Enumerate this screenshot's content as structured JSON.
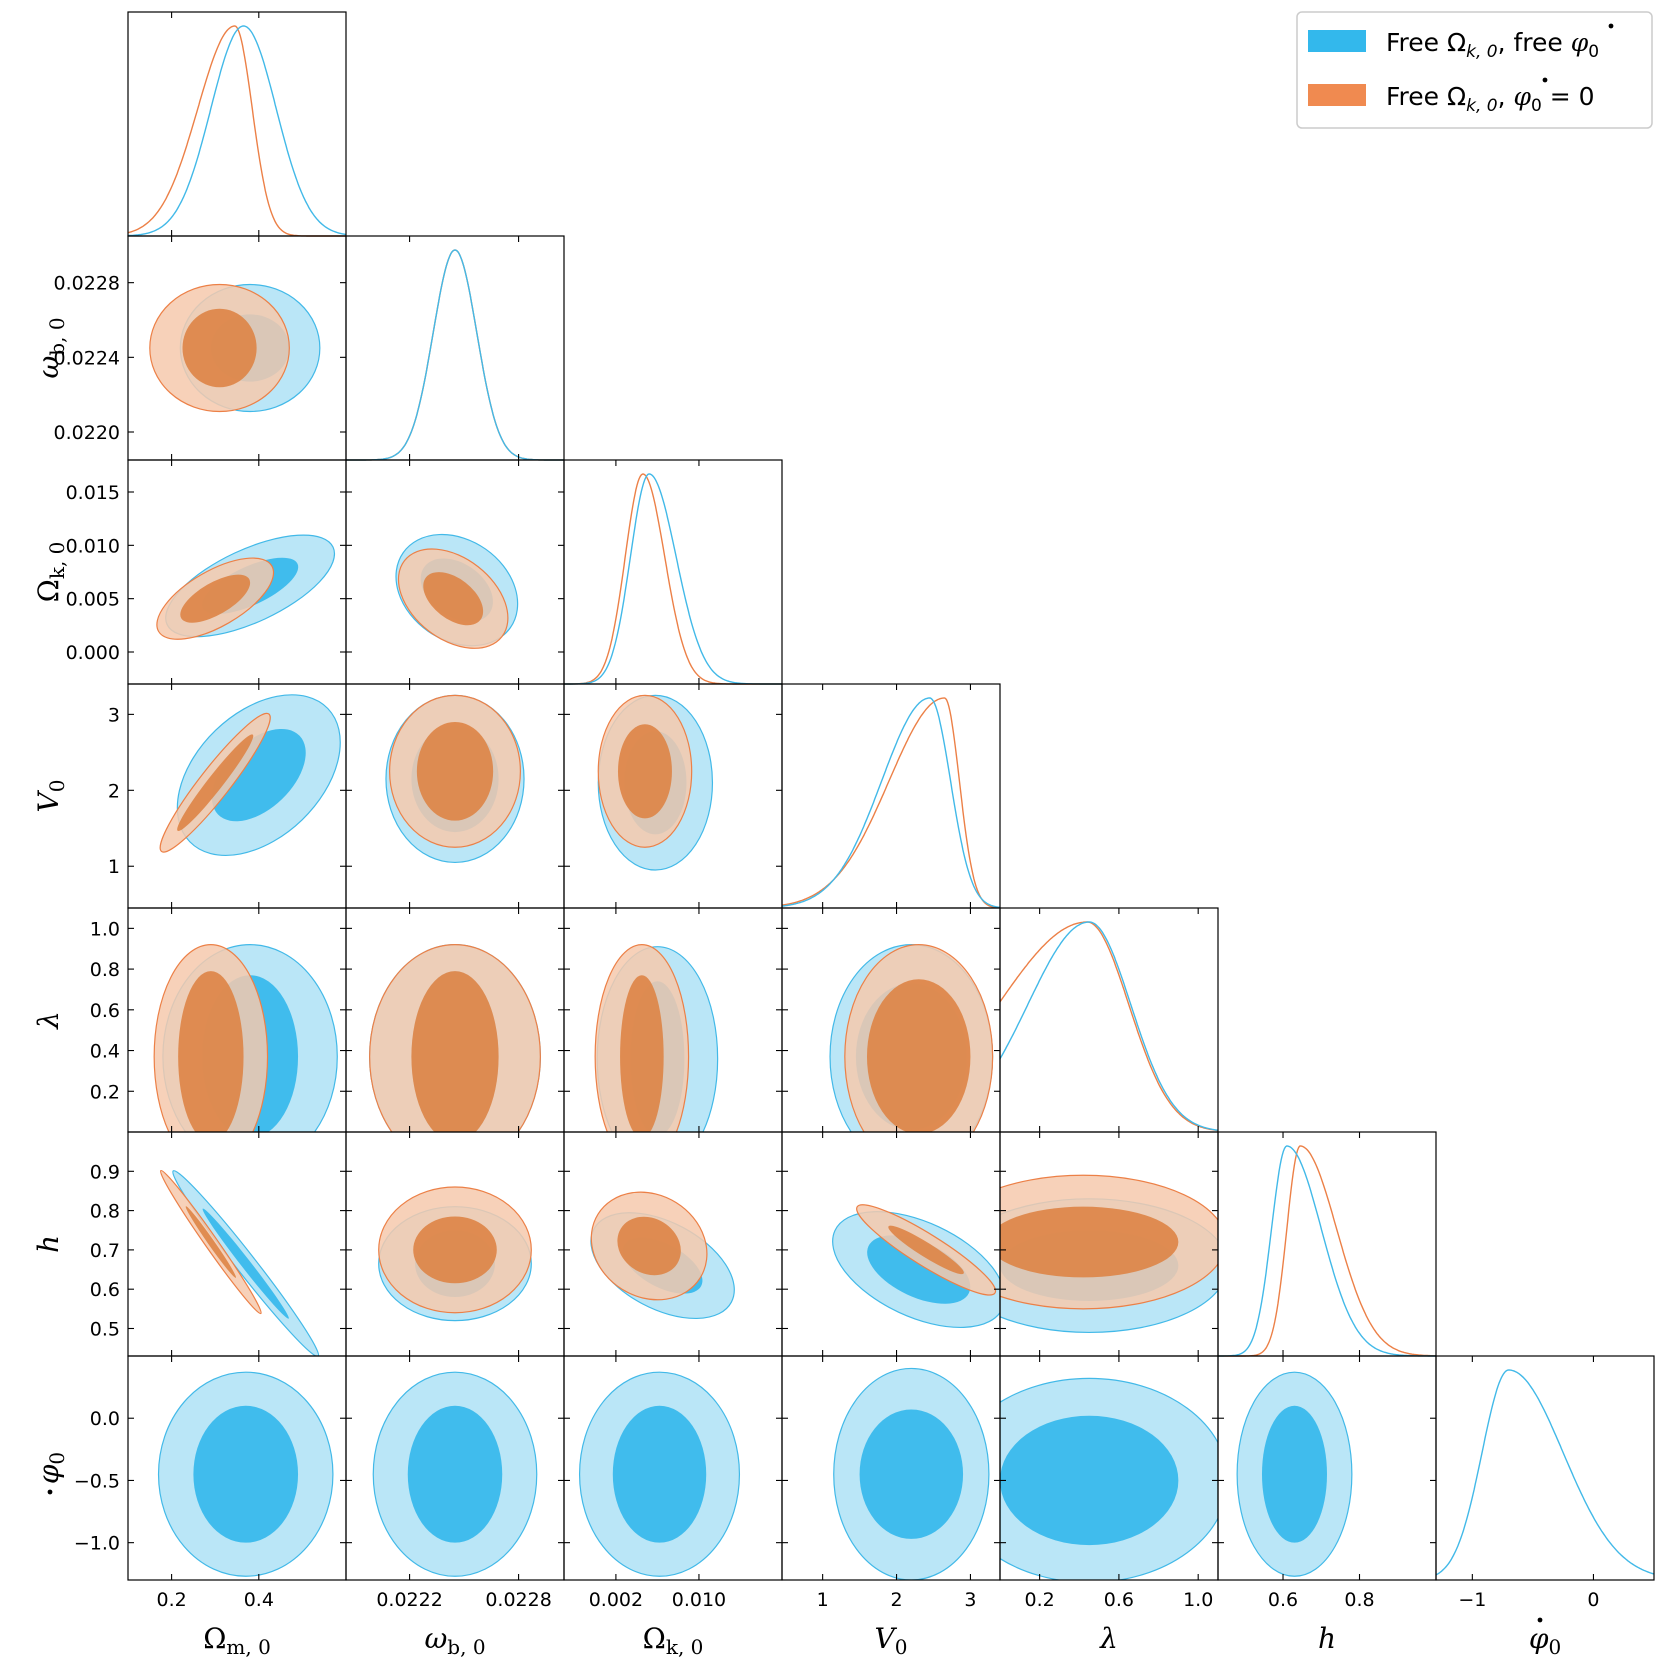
{
  "chart_data": {
    "type": "corner",
    "legend": {
      "placement": "top-right",
      "entries": [
        {
          "text_a": "Free Ω",
          "sub": "k, 0",
          "text_b": ", free ",
          "phi_sub": "0",
          "phi_tail": "",
          "color": "#33b8ec"
        },
        {
          "text_a": "Free Ω",
          "sub": "k, 0",
          "text_b": ", ",
          "phi_sub": "0",
          "phi_tail": " = 0",
          "color": "#f08a50"
        }
      ]
    },
    "colors": {
      "blue_line": "#42b9e8",
      "blue_fill_outer": "#aee2f6",
      "blue_fill_inner": "#35b9ec",
      "orange_line": "#ec8047",
      "orange_fill_outer": "#f6c9ad",
      "orange_fill_inner": "#dd8648"
    },
    "params": [
      {
        "name": "Ω",
        "sub": "m, 0",
        "italic": false,
        "lim": [
          0.1,
          0.6
        ],
        "ticks": [
          0.2,
          0.4
        ]
      },
      {
        "name": "ω",
        "sub": "b, 0",
        "italic": true,
        "lim": [
          0.02185,
          0.02305
        ],
        "ticks": [
          0.0222,
          0.0228
        ],
        "yticks": [
          0.022,
          0.0224,
          0.0228
        ]
      },
      {
        "name": "Ω",
        "sub": "k, 0",
        "italic": false,
        "lim": [
          -0.003,
          0.018
        ],
        "ticks": [
          0.002,
          0.01
        ],
        "yticks": [
          0.0,
          0.005,
          0.01,
          0.015
        ]
      },
      {
        "name": "V",
        "sub": "0",
        "italic": true,
        "lim": [
          0.45,
          3.4
        ],
        "ticks": [
          1,
          2,
          3
        ],
        "yticks": [
          1,
          2,
          3
        ]
      },
      {
        "name": "λ",
        "sub": "",
        "italic": true,
        "lim": [
          0.0,
          1.1
        ],
        "ticks": [
          0.2,
          0.6,
          1.0
        ],
        "yticks": [
          0.2,
          0.4,
          0.6,
          0.8,
          1.0
        ]
      },
      {
        "name": "h",
        "sub": "",
        "italic": true,
        "lim": [
          0.43,
          1.0
        ],
        "ticks": [
          0.6,
          0.8
        ],
        "yticks": [
          0.5,
          0.6,
          0.7,
          0.8,
          0.9
        ]
      },
      {
        "name": "φ",
        "sub": "0",
        "dot": true,
        "italic": true,
        "lim": [
          -1.3,
          0.5
        ],
        "ticks": [
          -1,
          0
        ],
        "yticks": [
          -1.0,
          -0.5,
          0.0
        ]
      }
    ],
    "tick_text": {
      "0": [
        "0.2",
        "0.4"
      ],
      "1x": [
        "0.0222",
        "0.0228"
      ],
      "1y": [
        "0.0220",
        "0.0224",
        "0.0228"
      ],
      "2x": [
        "0.002",
        "0.010"
      ],
      "2y": [
        "0.000",
        "0.005",
        "0.010",
        "0.015"
      ],
      "3x": [
        "1",
        "2",
        "3"
      ],
      "3y": [
        "1",
        "2",
        "3"
      ],
      "4x": [
        "0.2",
        "0.6",
        "1.0"
      ],
      "4y": [
        "0.2",
        "0.4",
        "0.6",
        "0.8",
        "1.0"
      ],
      "5x": [
        "0.6",
        "0.8"
      ],
      "5y": [
        "0.5",
        "0.6",
        "0.7",
        "0.8",
        "0.9"
      ],
      "6x": [
        "−1",
        "0"
      ],
      "6y": [
        "−1.0",
        "−0.5",
        "0.0"
      ]
    },
    "marginals": [
      {
        "blue": {
          "mean": 0.365,
          "sd": 0.075
        },
        "orange": {
          "mean": 0.345,
          "sdl": 0.085,
          "sdr": 0.04
        }
      },
      {
        "blue": {
          "mean": 0.02245,
          "sd": 0.00012
        },
        "orange": {
          "mean": 0.02245,
          "sd": 0.00012
        }
      },
      {
        "blue": {
          "mean": 0.0052,
          "sdl": 0.0018,
          "sdr": 0.0026
        },
        "orange": {
          "mean": 0.0046,
          "sdl": 0.0017,
          "sdr": 0.0021
        }
      },
      {
        "blue": {
          "mean": 2.45,
          "sdl": 0.65,
          "sdr": 0.28
        },
        "orange": {
          "mean": 2.65,
          "sdl": 0.75,
          "sdr": 0.2
        }
      },
      {
        "blue": {
          "mean": 0.45,
          "sdl": 0.31,
          "sdr": 0.21
        },
        "orange": {
          "mean": 0.44,
          "sdl": 0.45,
          "sdr": 0.21
        }
      },
      {
        "blue": {
          "mean": 0.61,
          "sdl": 0.04,
          "sdr": 0.09
        },
        "orange": {
          "mean": 0.645,
          "sdl": 0.035,
          "sdr": 0.095
        }
      },
      {
        "blue": {
          "mean": -0.7,
          "sdl": 0.22,
          "sdr": 0.45
        }
      }
    ],
    "contours": [
      {
        "row": 1,
        "col": 0,
        "blue": {
          "cx": 0.38,
          "cy": 0.02245,
          "rx": 0.16,
          "ry": 0.00034,
          "rot": 0,
          "rx2": 0.09,
          "ry2": 0.00018
        },
        "orange": {
          "cx": 0.31,
          "cy": 0.02245,
          "rx": 0.16,
          "ry": 0.00034,
          "rot": 0,
          "rx2": 0.085,
          "ry2": 0.00021
        }
      },
      {
        "row": 2,
        "col": 0,
        "blue": {
          "cx": 0.38,
          "cy": 0.0062,
          "rx": 0.21,
          "ry": 0.0034,
          "rot": 25,
          "rx2": 0.12,
          "ry2": 0.0018
        },
        "orange": {
          "cx": 0.3,
          "cy": 0.005,
          "rx": 0.15,
          "ry": 0.0026,
          "rot": 30,
          "rx2": 0.09,
          "ry2": 0.0015
        }
      },
      {
        "row": 2,
        "col": 1,
        "blue": {
          "cx": 0.02246,
          "cy": 0.0058,
          "rx": 0.00036,
          "ry": 0.0047,
          "rot": -35,
          "rx2": 0.00022,
          "ry2": 0.0025
        },
        "orange": {
          "cx": 0.02244,
          "cy": 0.005,
          "rx": 0.00034,
          "ry": 0.0038,
          "rot": -38,
          "rx2": 0.00019,
          "ry2": 0.0019
        }
      },
      {
        "row": 3,
        "col": 0,
        "blue": {
          "cx": 0.4,
          "cy": 2.2,
          "rx": 0.22,
          "ry": 0.82,
          "rot": 44,
          "rx2": 0.13,
          "ry2": 0.44
        },
        "orange": {
          "cx": 0.3,
          "cy": 2.1,
          "rx": 0.2,
          "ry": 0.2,
          "rot": 52,
          "rx2": 0.14,
          "ry2": 0.1
        }
      },
      {
        "row": 3,
        "col": 1,
        "blue": {
          "cx": 0.02245,
          "cy": 2.15,
          "rx": 0.00038,
          "ry": 1.1,
          "rot": 0,
          "rx2": 0.00024,
          "ry2": 0.7
        },
        "orange": {
          "cx": 0.02245,
          "cy": 2.25,
          "rx": 0.00036,
          "ry": 1.0,
          "rot": 0,
          "rx2": 0.00021,
          "ry2": 0.65
        }
      },
      {
        "row": 3,
        "col": 2,
        "blue": {
          "cx": 0.0058,
          "cy": 2.1,
          "rx": 0.0055,
          "ry": 1.15,
          "rot": 0,
          "rx2": 0.003,
          "ry2": 0.68
        },
        "orange": {
          "cx": 0.0048,
          "cy": 2.25,
          "rx": 0.0045,
          "ry": 1.0,
          "rot": 0,
          "rx2": 0.0026,
          "ry2": 0.62
        }
      },
      {
        "row": 4,
        "col": 0,
        "blue": {
          "cx": 0.38,
          "cy": 0.37,
          "rx": 0.2,
          "ry": 0.55,
          "rot": 0,
          "rx2": 0.11,
          "ry2": 0.4
        },
        "orange": {
          "cx": 0.29,
          "cy": 0.37,
          "rx": 0.13,
          "ry": 0.55,
          "rot": 0,
          "rx2": 0.075,
          "ry2": 0.42
        }
      },
      {
        "row": 4,
        "col": 1,
        "blue": {
          "cx": 0.02245,
          "cy": 0.37,
          "rx": 0.00047,
          "ry": 0.55,
          "rot": 0,
          "rx2": 0.00024,
          "ry2": 0.42
        },
        "orange": {
          "cx": 0.02245,
          "cy": 0.37,
          "rx": 0.00047,
          "ry": 0.55,
          "rot": 0,
          "rx2": 0.00024,
          "ry2": 0.42
        }
      },
      {
        "row": 4,
        "col": 2,
        "blue": {
          "cx": 0.006,
          "cy": 0.36,
          "rx": 0.0058,
          "ry": 0.55,
          "rot": 0,
          "rx2": 0.0026,
          "ry2": 0.38
        },
        "orange": {
          "cx": 0.0045,
          "cy": 0.37,
          "rx": 0.0045,
          "ry": 0.55,
          "rot": 0,
          "rx2": 0.0021,
          "ry2": 0.4
        }
      },
      {
        "row": 4,
        "col": 3,
        "blue": {
          "cx": 2.2,
          "cy": 0.37,
          "rx": 1.1,
          "ry": 0.55,
          "rot": 0,
          "rx2": 0.75,
          "ry2": 0.36
        },
        "orange": {
          "cx": 2.3,
          "cy": 0.37,
          "rx": 1.0,
          "ry": 0.55,
          "rot": 0,
          "rx2": 0.7,
          "ry2": 0.38
        }
      },
      {
        "row": 5,
        "col": 0,
        "blue": {
          "cx": 0.37,
          "cy": 0.665,
          "rx": 0.27,
          "ry": 0.025,
          "rot": -52,
          "rx2": 0.16,
          "ry2": 0.012
        },
        "orange": {
          "cx": 0.29,
          "cy": 0.72,
          "rx": 0.2,
          "ry": 0.016,
          "rot": -55,
          "rx2": 0.1,
          "ry2": 0.008
        }
      },
      {
        "row": 5,
        "col": 1,
        "blue": {
          "cx": 0.02245,
          "cy": 0.665,
          "rx": 0.00042,
          "ry": 0.145,
          "rot": 0,
          "rx2": 0.00022,
          "ry2": 0.085
        },
        "orange": {
          "cx": 0.02245,
          "cy": 0.7,
          "rx": 0.00042,
          "ry": 0.16,
          "rot": 0,
          "rx2": 0.00023,
          "ry2": 0.085
        }
      },
      {
        "row": 5,
        "col": 2,
        "blue": {
          "cx": 0.0065,
          "cy": 0.66,
          "rx": 0.0075,
          "ry": 0.11,
          "rot": -28,
          "rx2": 0.0042,
          "ry2": 0.055
        },
        "orange": {
          "cx": 0.0052,
          "cy": 0.71,
          "rx": 0.0058,
          "ry": 0.13,
          "rot": -32,
          "rx2": 0.0032,
          "ry2": 0.07
        }
      },
      {
        "row": 5,
        "col": 3,
        "blue": {
          "cx": 2.3,
          "cy": 0.65,
          "rx": 1.25,
          "ry": 0.12,
          "rot": -25,
          "rx2": 0.75,
          "ry2": 0.07
        },
        "orange": {
          "cx": 2.4,
          "cy": 0.7,
          "rx": 1.1,
          "ry": 0.04,
          "rot": -32,
          "rx2": 0.6,
          "ry2": 0.018
        }
      },
      {
        "row": 5,
        "col": 4,
        "blue": {
          "cx": 0.45,
          "cy": 0.66,
          "rx": 0.7,
          "ry": 0.17,
          "rot": 0,
          "rx2": 0.45,
          "ry2": 0.09
        },
        "orange": {
          "cx": 0.42,
          "cy": 0.72,
          "rx": 0.72,
          "ry": 0.17,
          "rot": 0,
          "rx2": 0.48,
          "ry2": 0.09
        }
      },
      {
        "row": 6,
        "col": 0,
        "blue": {
          "cx": 0.37,
          "cy": -0.45,
          "rx": 0.2,
          "ry": 0.82,
          "rot": 0,
          "rx2": 0.12,
          "ry2": 0.55
        }
      },
      {
        "row": 6,
        "col": 1,
        "blue": {
          "cx": 0.02245,
          "cy": -0.45,
          "rx": 0.00045,
          "ry": 0.82,
          "rot": 0,
          "rx2": 0.00026,
          "ry2": 0.55
        }
      },
      {
        "row": 6,
        "col": 2,
        "blue": {
          "cx": 0.0062,
          "cy": -0.45,
          "rx": 0.0077,
          "ry": 0.82,
          "rot": 0,
          "rx2": 0.0045,
          "ry2": 0.55
        }
      },
      {
        "row": 6,
        "col": 3,
        "blue": {
          "cx": 2.2,
          "cy": -0.45,
          "rx": 1.05,
          "ry": 0.85,
          "rot": 0,
          "rx2": 0.7,
          "ry2": 0.52
        }
      },
      {
        "row": 6,
        "col": 4,
        "blue": {
          "cx": 0.45,
          "cy": -0.5,
          "rx": 0.7,
          "ry": 0.82,
          "rot": 0,
          "rx2": 0.45,
          "ry2": 0.52
        }
      },
      {
        "row": 6,
        "col": 5,
        "blue": {
          "cx": 0.63,
          "cy": -0.45,
          "rx": 0.15,
          "ry": 0.82,
          "rot": 0,
          "rx2": 0.085,
          "ry2": 0.55
        }
      }
    ]
  }
}
